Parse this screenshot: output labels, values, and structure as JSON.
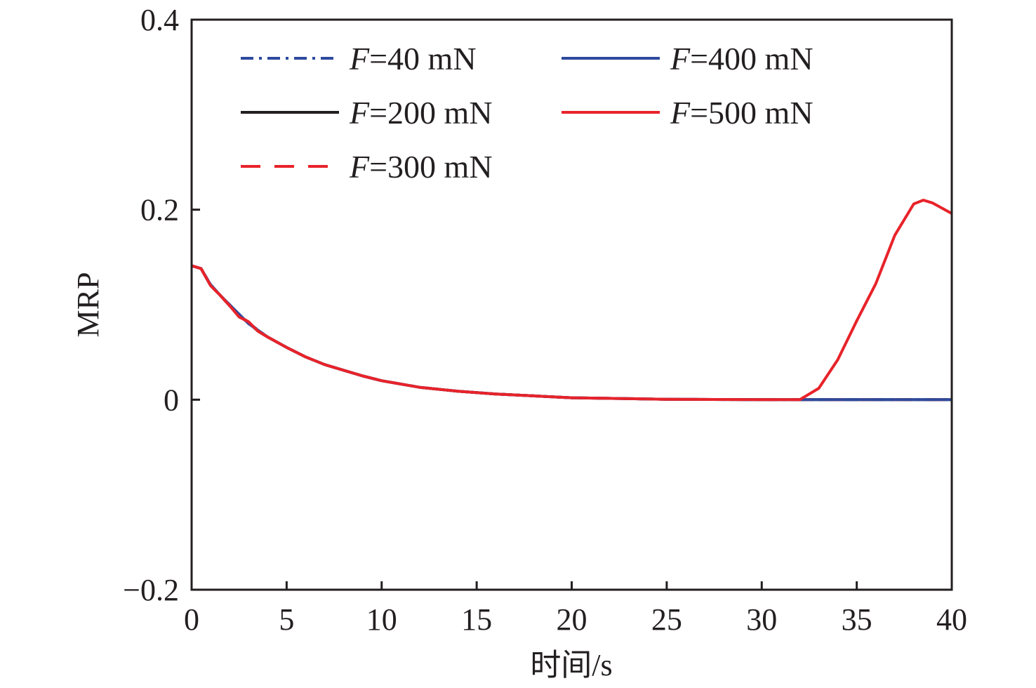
{
  "chart_data": {
    "type": "line",
    "title": "",
    "xlabel": "时间/s",
    "ylabel": "MRP",
    "xlim": [
      0,
      40
    ],
    "ylim": [
      -0.2,
      0.4
    ],
    "xticks": [
      0,
      5,
      10,
      15,
      20,
      25,
      30,
      35,
      40
    ],
    "xtick_labels": [
      "0",
      "5",
      "10",
      "15",
      "20",
      "25",
      "30",
      "35",
      "40"
    ],
    "yticks": [
      -0.2,
      0,
      0.2,
      0.4
    ],
    "ytick_labels": [
      "−0.2",
      "0",
      "0.2",
      "0.4"
    ],
    "grid": false,
    "legend_position": "top",
    "x": [
      0,
      0.5,
      1,
      1.5,
      2,
      2.5,
      3,
      3.5,
      4,
      5,
      6,
      7,
      8,
      9,
      10,
      12,
      14,
      16,
      18,
      20,
      25,
      30,
      32,
      33,
      34,
      35,
      36,
      37,
      38,
      38.5,
      39,
      40
    ],
    "series": [
      {
        "name": "F=40 mN",
        "color": "#2e4a9e",
        "style": "dashdot",
        "values": [
          0.141,
          0.138,
          0.121,
          0.11,
          0.1,
          0.089,
          0.081,
          0.073,
          0.066,
          0.055,
          0.045,
          0.037,
          0.031,
          0.025,
          0.02,
          0.013,
          0.009,
          0.006,
          0.004,
          0.002,
          0.0005,
          0,
          0,
          0,
          0,
          0,
          0,
          0,
          0,
          0,
          0,
          0
        ]
      },
      {
        "name": "F=200 mN",
        "color": "#231f20",
        "style": "solid",
        "values": [
          0.141,
          0.138,
          0.12,
          0.11,
          0.099,
          0.088,
          0.081,
          0.072,
          0.066,
          0.055,
          0.045,
          0.037,
          0.031,
          0.025,
          0.02,
          0.013,
          0.009,
          0.006,
          0.004,
          0.002,
          0.0005,
          0,
          0,
          0,
          0,
          0,
          0,
          0,
          0,
          0,
          0,
          0
        ]
      },
      {
        "name": "F=300 mN",
        "color": "#e8232a",
        "style": "dashed",
        "values": [
          0.141,
          0.138,
          0.12,
          0.11,
          0.099,
          0.088,
          0.082,
          0.072,
          0.066,
          0.055,
          0.045,
          0.037,
          0.031,
          0.025,
          0.02,
          0.013,
          0.009,
          0.006,
          0.004,
          0.002,
          0.0005,
          0,
          0,
          0,
          0,
          0,
          0,
          0,
          0,
          0,
          0,
          0
        ]
      },
      {
        "name": "F=400 mN",
        "color": "#2e4a9e",
        "style": "solid",
        "values": [
          0.141,
          0.138,
          0.121,
          0.11,
          0.1,
          0.09,
          0.08,
          0.073,
          0.066,
          0.055,
          0.045,
          0.037,
          0.031,
          0.025,
          0.02,
          0.013,
          0.009,
          0.006,
          0.004,
          0.002,
          0.0005,
          0,
          0,
          0,
          0,
          0,
          0,
          0,
          0,
          0,
          0,
          0
        ]
      },
      {
        "name": "F=500 mN",
        "color": "#e8232a",
        "style": "solid",
        "values": [
          0.141,
          0.138,
          0.12,
          0.11,
          0.099,
          0.087,
          0.082,
          0.072,
          0.066,
          0.055,
          0.045,
          0.037,
          0.031,
          0.025,
          0.02,
          0.013,
          0.009,
          0.006,
          0.004,
          0.002,
          0.0005,
          0,
          0,
          0.012,
          0.042,
          0.083,
          0.122,
          0.173,
          0.206,
          0.21,
          0.207,
          0.196
        ]
      }
    ]
  }
}
